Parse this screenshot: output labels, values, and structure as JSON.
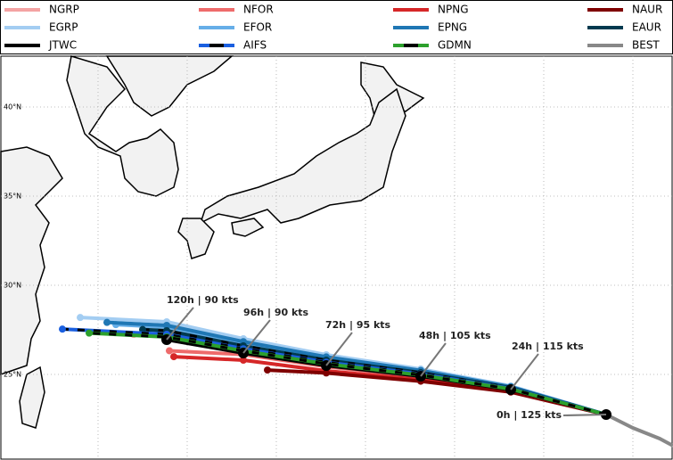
{
  "legend": [
    {
      "name": "NGRP",
      "color": "#f4a3a3"
    },
    {
      "name": "NFOR",
      "color": "#ee6b6b"
    },
    {
      "name": "NPNG",
      "color": "#d62728"
    },
    {
      "name": "NAUR",
      "color": "#7f0000"
    },
    {
      "name": "EGRP",
      "color": "#a3cdf2"
    },
    {
      "name": "EFOR",
      "color": "#66aee8"
    },
    {
      "name": "EPNG",
      "color": "#1f77b4"
    },
    {
      "name": "EAUR",
      "color": "#003a4f"
    },
    {
      "name": "JTWC",
      "color": "#000000"
    },
    {
      "name": "AIFS",
      "color": "#1a5fe0"
    },
    {
      "name": "GDMN",
      "color": "#2ca02c"
    },
    {
      "name": "BEST",
      "color": "#888888"
    }
  ],
  "lat_labels": [
    "40°N",
    "35°N",
    "30°N",
    "25°N"
  ],
  "annotations": [
    "120h | 90 kts",
    "96h | 90 kts",
    "72h | 95 kts",
    "48h | 105 kts",
    "24h | 115 kts",
    "0h | 125 kts"
  ]
}
